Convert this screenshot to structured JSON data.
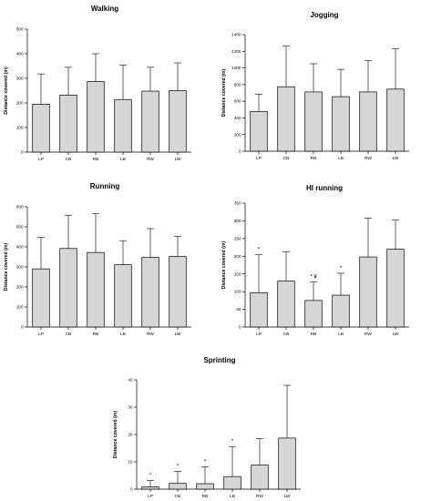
{
  "chart_data": [
    {
      "type": "bar",
      "title": "Walking",
      "ylabel": "Distance covered (m)",
      "categories": [
        "LP",
        "CB",
        "RB",
        "LB",
        "RW",
        "LW"
      ],
      "values": [
        195,
        232,
        287,
        214,
        248,
        250
      ],
      "error": [
        123,
        113,
        113,
        140,
        97,
        113
      ],
      "yticks": [
        "0",
        "100",
        "200",
        "300",
        "400",
        "500"
      ],
      "ylim": [
        0,
        500
      ],
      "markers": [
        "",
        "",
        "",
        "",
        "",
        ""
      ]
    },
    {
      "type": "bar",
      "title": "Jogging",
      "ylabel": "Distance covered (m)",
      "categories": [
        "LP",
        "CB",
        "RB",
        "LB",
        "RW",
        "LW"
      ],
      "values": [
        478,
        774,
        712,
        655,
        712,
        746
      ],
      "error": [
        208,
        488,
        338,
        328,
        375,
        483
      ],
      "yticks": [
        "0",
        "200",
        "400",
        "600",
        "800",
        "1000",
        "1200",
        "1400"
      ],
      "ylim": [
        0,
        1400
      ],
      "markers": [
        "",
        "",
        "",
        "",
        "",
        ""
      ]
    },
    {
      "type": "bar",
      "title": "Running",
      "ylabel": "Distance covered (m)",
      "categories": [
        "LP",
        "CB",
        "RB",
        "LB",
        "RW",
        "LW"
      ],
      "values": [
        290,
        392,
        372,
        311,
        347,
        352
      ],
      "error": [
        158,
        166,
        193,
        120,
        144,
        100
      ],
      "yticks": [
        "0",
        "100",
        "200",
        "300",
        "400",
        "500",
        "600"
      ],
      "ylim": [
        0,
        600
      ],
      "markers": [
        "",
        "",
        "",
        "",
        "",
        ""
      ]
    },
    {
      "type": "bar",
      "title": "HI running",
      "ylabel": "Distance covered (m)",
      "categories": [
        "LP",
        "CB",
        "RB",
        "LB",
        "RW",
        "LW"
      ],
      "values": [
        97,
        130,
        75,
        90,
        198,
        220
      ],
      "error": [
        107,
        83,
        52,
        62,
        110,
        82
      ],
      "yticks": [
        "0",
        "50",
        "100",
        "150",
        "200",
        "250",
        "300",
        "350"
      ],
      "ylim": [
        0,
        350
      ],
      "markers": [
        "*",
        "",
        "* ¥",
        "*",
        "",
        ""
      ]
    },
    {
      "type": "bar",
      "title": "Sprinting",
      "ylabel": "Distance covered (m)",
      "categories": [
        "LP",
        "CB",
        "RB",
        "LB",
        "RW",
        "LW"
      ],
      "values": [
        0.8,
        2.1,
        2.0,
        4.6,
        8.8,
        18.7
      ],
      "error": [
        2.4,
        4.4,
        6.2,
        11.0,
        9.7,
        19.3
      ],
      "yticks": [
        "0",
        "10",
        "20",
        "30",
        "40"
      ],
      "ylim": [
        0,
        40
      ],
      "markers": [
        "*",
        "*",
        "*",
        "*",
        "",
        ""
      ]
    }
  ]
}
